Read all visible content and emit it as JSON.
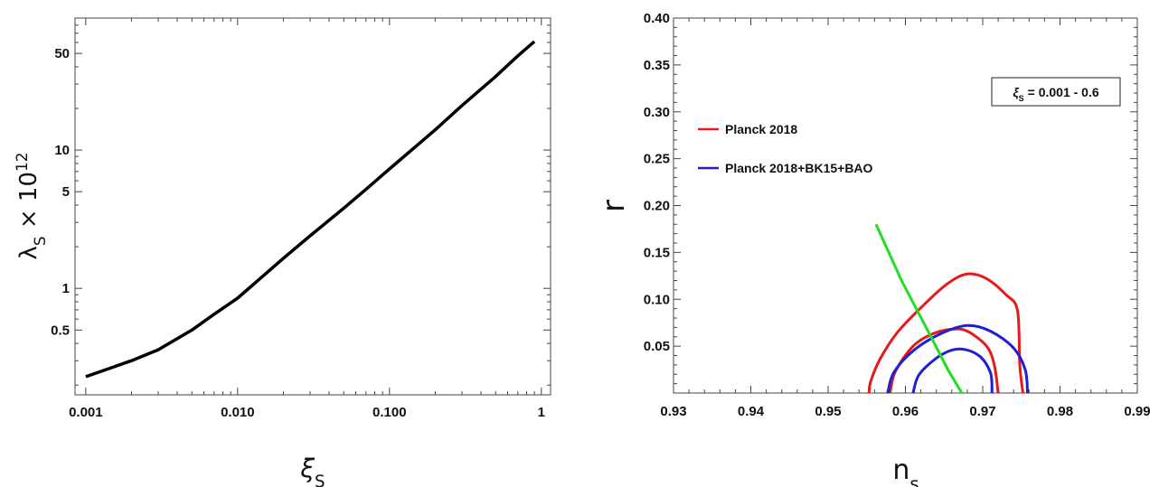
{
  "chart_data": [
    {
      "type": "line",
      "title": "",
      "xlabel": "ξ_S",
      "ylabel": "λ_S × 10^12",
      "xscale": "log",
      "yscale": "log",
      "xlim": [
        0.00085,
        1.15
      ],
      "ylim": [
        0.17,
        90
      ],
      "xticks": [
        0.001,
        0.01,
        0.1,
        1
      ],
      "xtick_labels": [
        "0.001",
        "0.010",
        "0.100",
        "1"
      ],
      "yticks": [
        0.5,
        1,
        5,
        10,
        50
      ],
      "ytick_labels": [
        "0.5",
        "1",
        "5",
        "10",
        "50"
      ],
      "grid": false,
      "series": [
        {
          "color": "#000000",
          "x": [
            0.001,
            0.002,
            0.003,
            0.005,
            0.007,
            0.01,
            0.02,
            0.03,
            0.05,
            0.07,
            0.1,
            0.2,
            0.3,
            0.5,
            0.7,
            0.9
          ],
          "y": [
            0.23,
            0.3,
            0.36,
            0.5,
            0.65,
            0.85,
            1.65,
            2.4,
            3.8,
            5.2,
            7.3,
            14,
            21,
            34,
            48,
            61
          ]
        }
      ]
    },
    {
      "type": "line",
      "title": "",
      "xlabel": "n_s",
      "ylabel": "r",
      "xlim": [
        0.93,
        0.99
      ],
      "ylim": [
        0,
        0.4
      ],
      "xticks": [
        0.93,
        0.94,
        0.95,
        0.96,
        0.97,
        0.98,
        0.99
      ],
      "xtick_labels": [
        "0.93",
        "0.94",
        "0.95",
        "0.96",
        "0.97",
        "0.98",
        "0.99"
      ],
      "yticks": [
        0.05,
        0.1,
        0.15,
        0.2,
        0.25,
        0.3,
        0.35,
        0.4
      ],
      "ytick_labels": [
        "0.05",
        "0.10",
        "0.15",
        "0.20",
        "0.25",
        "0.30",
        "0.35",
        "0.40"
      ],
      "grid": false,
      "legend_placement": "left",
      "annotation": "ξ_S = 0.001 - 0.6",
      "legend": [
        {
          "name": "Planck 2018",
          "color": "#e41a1c"
        },
        {
          "name": "Planck 2018+BK15+BAO",
          "color": "#1f1fd6"
        }
      ],
      "prediction": {
        "color": "#22dd22",
        "x": [
          0.9562,
          0.9595,
          0.963,
          0.9655,
          0.9673
        ],
        "y": [
          0.18,
          0.12,
          0.065,
          0.025,
          0.0
        ]
      },
      "contours": [
        {
          "name": "Planck 2018",
          "color": "#e41a1c",
          "level": "outer",
          "points": [
            [
              0.9553,
              0
            ],
            [
              0.9555,
              0.012
            ],
            [
              0.9567,
              0.036
            ],
            [
              0.959,
              0.065
            ],
            [
              0.9625,
              0.095
            ],
            [
              0.9655,
              0.117
            ],
            [
              0.968,
              0.127
            ],
            [
              0.9705,
              0.122
            ],
            [
              0.973,
              0.105
            ],
            [
              0.9745,
              0.088
            ],
            [
              0.9748,
              0.03
            ],
            [
              0.9752,
              0
            ]
          ]
        },
        {
          "name": "Planck 2018",
          "color": "#e41a1c",
          "level": "inner",
          "points": [
            [
              0.958,
              0
            ],
            [
              0.9587,
              0.023
            ],
            [
              0.961,
              0.05
            ],
            [
              0.9635,
              0.063
            ],
            [
              0.966,
              0.068
            ],
            [
              0.968,
              0.066
            ],
            [
              0.9705,
              0.05
            ],
            [
              0.9715,
              0.03
            ],
            [
              0.972,
              0
            ]
          ]
        },
        {
          "name": "Planck 2018+BK15+BAO",
          "color": "#1f1fd6",
          "level": "outer",
          "points": [
            [
              0.9577,
              0
            ],
            [
              0.9585,
              0.022
            ],
            [
              0.961,
              0.045
            ],
            [
              0.9645,
              0.063
            ],
            [
              0.968,
              0.072
            ],
            [
              0.971,
              0.066
            ],
            [
              0.974,
              0.048
            ],
            [
              0.9755,
              0.025
            ],
            [
              0.9758,
              0
            ]
          ]
        },
        {
          "name": "Planck 2018+BK15+BAO",
          "color": "#1f1fd6",
          "level": "inner",
          "points": [
            [
              0.961,
              0
            ],
            [
              0.9618,
              0.02
            ],
            [
              0.9645,
              0.04
            ],
            [
              0.967,
              0.047
            ],
            [
              0.9695,
              0.04
            ],
            [
              0.971,
              0.022
            ],
            [
              0.9712,
              0
            ]
          ]
        }
      ]
    }
  ]
}
